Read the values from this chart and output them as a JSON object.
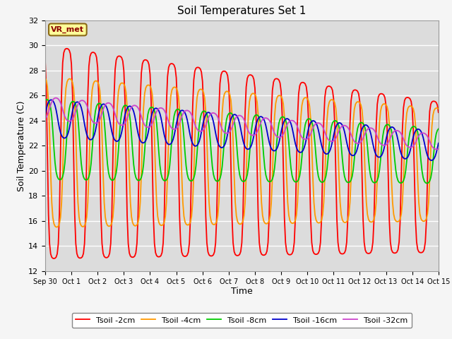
{
  "title": "Soil Temperatures Set 1",
  "xlabel": "Time",
  "ylabel": "Soil Temperature (C)",
  "ylim": [
    12,
    32
  ],
  "yticks": [
    12,
    14,
    16,
    18,
    20,
    22,
    24,
    26,
    28,
    30,
    32
  ],
  "line_colors": [
    "#ff0000",
    "#ff9900",
    "#00cc00",
    "#0000cc",
    "#cc44cc"
  ],
  "line_labels": [
    "Tsoil -2cm",
    "Tsoil -4cm",
    "Tsoil -8cm",
    "Tsoil -16cm",
    "Tsoil -32cm"
  ],
  "annotation_text": "VR_met",
  "bg_color": "#dcdcdc",
  "grid_color": "#ffffff",
  "fig_bg_color": "#f5f5f5",
  "n_days": 15,
  "legend_ncol": 5
}
